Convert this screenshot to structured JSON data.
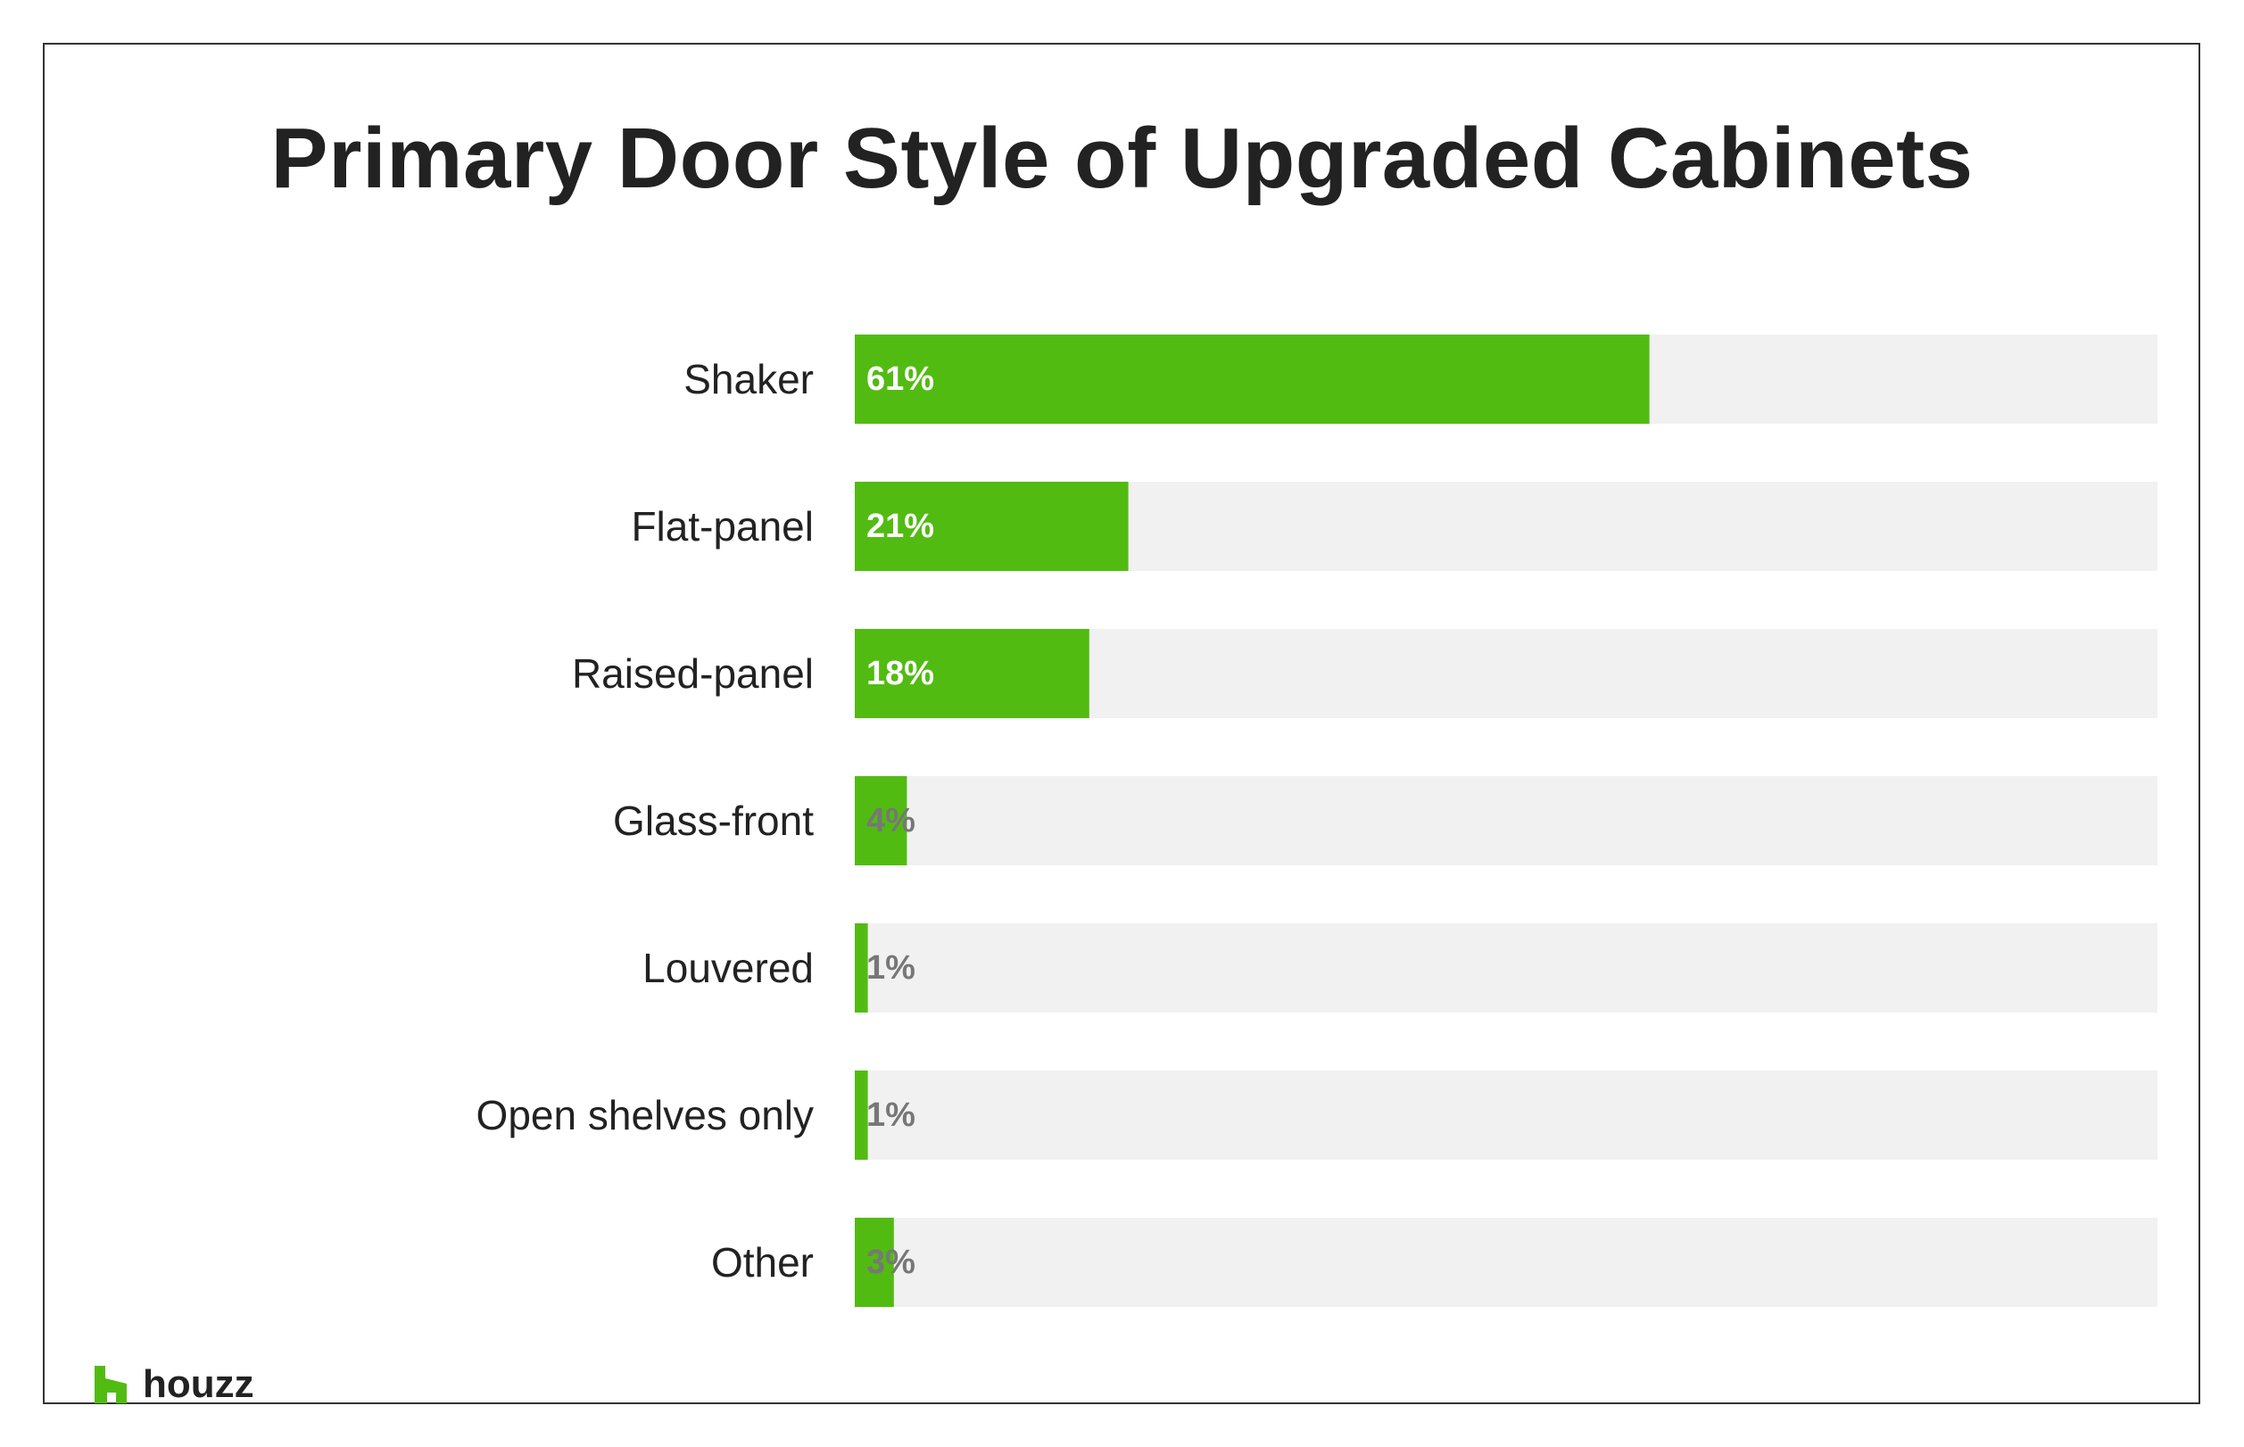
{
  "chart_data": {
    "type": "bar",
    "orientation": "horizontal",
    "title": "Primary Door Style of Upgraded Cabinets",
    "categories": [
      "Shaker",
      "Flat-panel",
      "Raised-panel",
      "Glass-front",
      "Louvered",
      "Open shelves only",
      "Other"
    ],
    "values": [
      61,
      21,
      18,
      4,
      1,
      1,
      3
    ],
    "value_labels": [
      "61%",
      "21%",
      "18%",
      "4%",
      "1%",
      "1%",
      "3%"
    ],
    "unit": "%",
    "xlim": [
      0,
      100
    ],
    "grid": false,
    "legend": "none"
  },
  "colors": {
    "bar": "#52bb12",
    "track": "#f1f1f1",
    "label_on_bar": "#ffffff",
    "label_off_bar": "#777777",
    "text": "#222222"
  },
  "branding": {
    "logo_text": "houzz"
  }
}
